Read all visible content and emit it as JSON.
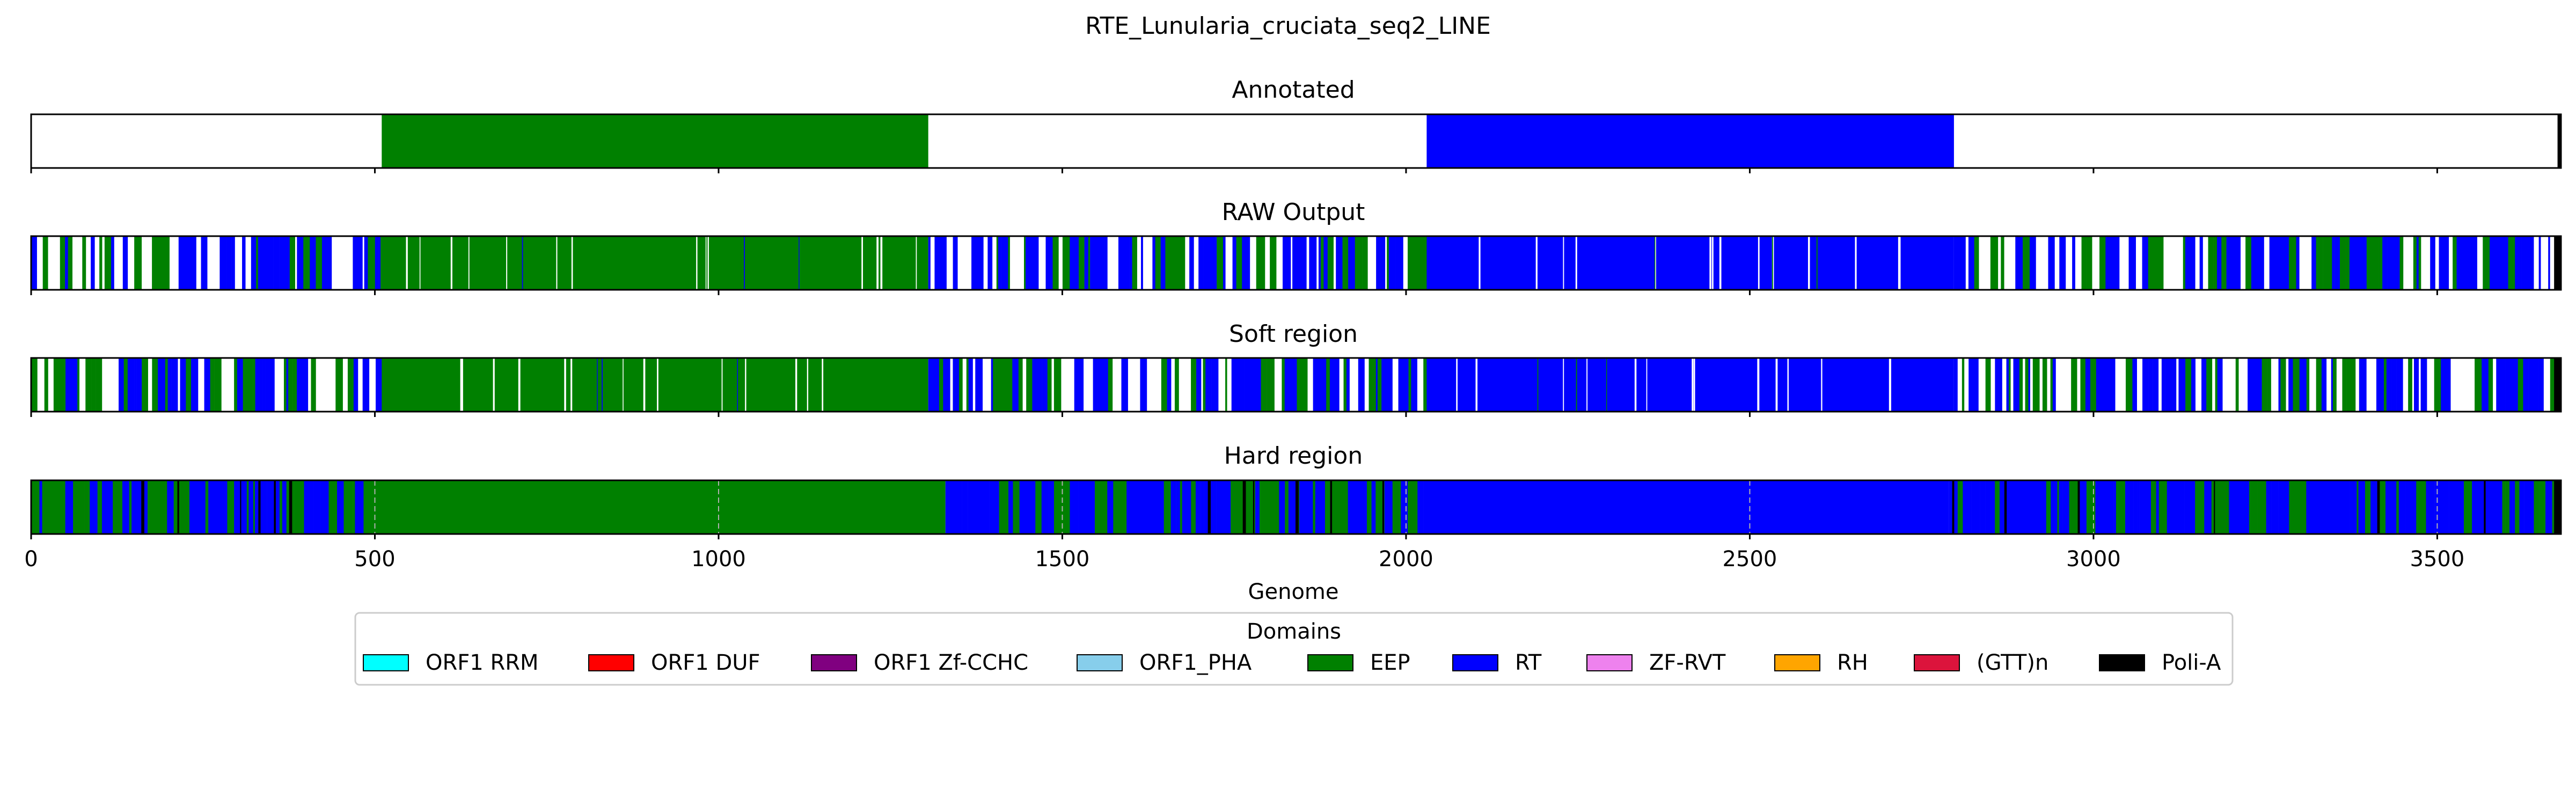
{
  "figure_title": "RTE_Lunularia_cruciata_seq2_LINE",
  "legend": {
    "title": "Domains",
    "items": [
      {
        "label": "ORF1 RRM",
        "color": "#00ffff"
      },
      {
        "label": "ORF1 DUF",
        "color": "#ff0000"
      },
      {
        "label": "ORF1 Zf-CCHC",
        "color": "#800080"
      },
      {
        "label": "ORF1_PHA",
        "color": "#87ceeb"
      },
      {
        "label": "EEP",
        "color": "#008000"
      },
      {
        "label": "RT",
        "color": "#0000ff"
      },
      {
        "label": "ZF-RVT",
        "color": "#ee82ee"
      },
      {
        "label": "RH",
        "color": "#ffa500"
      },
      {
        "label": "(GTT)n",
        "color": "#dc143c"
      },
      {
        "label": "Poli-A",
        "color": "#000000"
      }
    ]
  },
  "chart_data": {
    "type": "heatmap",
    "title": "RTE_Lunularia_cruciata_seq2_LINE",
    "xlabel": "Genome",
    "xlim": [
      0,
      3680
    ],
    "xticks": [
      0,
      500,
      1000,
      1500,
      2000,
      2500,
      3000,
      3500
    ],
    "grid": "x-axis dashed (Hard region panel)",
    "legend_position": "bottom-center",
    "tracks": [
      {
        "name": "Annotated",
        "segments": [
          {
            "start": 510,
            "end": 1305,
            "domain": "EEP"
          },
          {
            "start": 2030,
            "end": 2797,
            "domain": "RT"
          },
          {
            "start": 3675,
            "end": 3680,
            "domain": "Poli-A"
          }
        ]
      },
      {
        "name": "RAW Output",
        "segments": [
          {
            "start": 0,
            "end": 510,
            "domain": "RT/EEP/gap mosaic"
          },
          {
            "start": 510,
            "end": 1305,
            "domain": "EEP"
          },
          {
            "start": 1305,
            "end": 2030,
            "domain": "RT/EEP/gap mosaic"
          },
          {
            "start": 2030,
            "end": 2797,
            "domain": "RT"
          },
          {
            "start": 2797,
            "end": 3670,
            "domain": "RT/EEP/gap mosaic"
          },
          {
            "start": 3670,
            "end": 3680,
            "domain": "Poli-A"
          }
        ]
      },
      {
        "name": "Soft region",
        "segments": [
          {
            "start": 0,
            "end": 510,
            "domain": "RT/EEP/gap mosaic"
          },
          {
            "start": 510,
            "end": 1305,
            "domain": "EEP"
          },
          {
            "start": 1305,
            "end": 2030,
            "domain": "RT/EEP/gap mosaic"
          },
          {
            "start": 2030,
            "end": 2797,
            "domain": "RT"
          },
          {
            "start": 2797,
            "end": 3670,
            "domain": "RT/EEP/gap mosaic"
          },
          {
            "start": 3670,
            "end": 3680,
            "domain": "Poli-A"
          }
        ]
      },
      {
        "name": "Hard region",
        "segments": [
          {
            "start": 0,
            "end": 500,
            "domain": "RT/EEP mosaic"
          },
          {
            "start": 500,
            "end": 1330,
            "domain": "EEP"
          },
          {
            "start": 1330,
            "end": 2030,
            "domain": "RT/EEP mosaic"
          },
          {
            "start": 2030,
            "end": 2790,
            "domain": "RT"
          },
          {
            "start": 2790,
            "end": 3670,
            "domain": "RT/EEP mosaic"
          },
          {
            "start": 3670,
            "end": 3680,
            "domain": "Poli-A"
          }
        ]
      }
    ]
  }
}
